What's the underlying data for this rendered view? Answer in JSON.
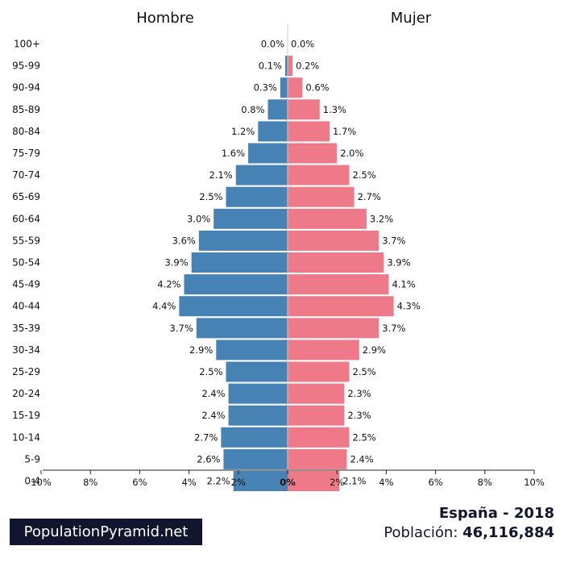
{
  "chart_data": {
    "type": "bar",
    "orientation": "horizontal-pyramid",
    "categories": [
      "100+",
      "95-99",
      "90-94",
      "85-89",
      "80-84",
      "75-79",
      "70-74",
      "65-69",
      "60-64",
      "55-59",
      "50-54",
      "45-49",
      "40-44",
      "35-39",
      "30-34",
      "25-29",
      "20-24",
      "15-19",
      "10-14",
      "5-9",
      "0-4"
    ],
    "series": [
      {
        "name": "Hombre",
        "side": "left",
        "color": "#4682b4",
        "values": [
          0.0,
          0.1,
          0.3,
          0.8,
          1.2,
          1.6,
          2.1,
          2.5,
          3.0,
          3.6,
          3.9,
          4.2,
          4.4,
          3.7,
          2.9,
          2.5,
          2.4,
          2.4,
          2.7,
          2.6,
          2.2
        ],
        "labels": [
          "0.0%",
          "0.1%",
          "0.3%",
          "0.8%",
          "1.2%",
          "1.6%",
          "2.1%",
          "2.5%",
          "3.0%",
          "3.6%",
          "3.9%",
          "4.2%",
          "4.4%",
          "3.7%",
          "2.9%",
          "2.5%",
          "2.4%",
          "2.4%",
          "2.7%",
          "2.6%",
          "2.2%"
        ]
      },
      {
        "name": "Mujer",
        "side": "right",
        "color": "#ee7989",
        "values": [
          0.0,
          0.2,
          0.6,
          1.3,
          1.7,
          2.0,
          2.5,
          2.7,
          3.2,
          3.7,
          3.9,
          4.1,
          4.3,
          3.7,
          2.9,
          2.5,
          2.3,
          2.3,
          2.5,
          2.4,
          2.1
        ],
        "labels": [
          "0.0%",
          "0.2%",
          "0.6%",
          "1.3%",
          "1.7%",
          "2.0%",
          "2.5%",
          "2.7%",
          "3.2%",
          "3.7%",
          "3.9%",
          "4.1%",
          "4.3%",
          "3.7%",
          "2.9%",
          "2.5%",
          "2.3%",
          "2.3%",
          "2.5%",
          "2.4%",
          "2.1%"
        ]
      }
    ],
    "xlim": [
      -10,
      10
    ],
    "xticks": [
      -10,
      -8,
      -6,
      -4,
      -2,
      0,
      2,
      4,
      6,
      8,
      10
    ],
    "xtick_labels": [
      "10%",
      "8%",
      "6%",
      "4%",
      "2%",
      "0%",
      "2%",
      "4%",
      "6%",
      "8%",
      "10%"
    ],
    "grid": false
  },
  "footer": {
    "brand": "PopulationPyramid.net",
    "country_year": "España - 2018",
    "population_label": "Población:",
    "population_value": "46,116,884"
  }
}
